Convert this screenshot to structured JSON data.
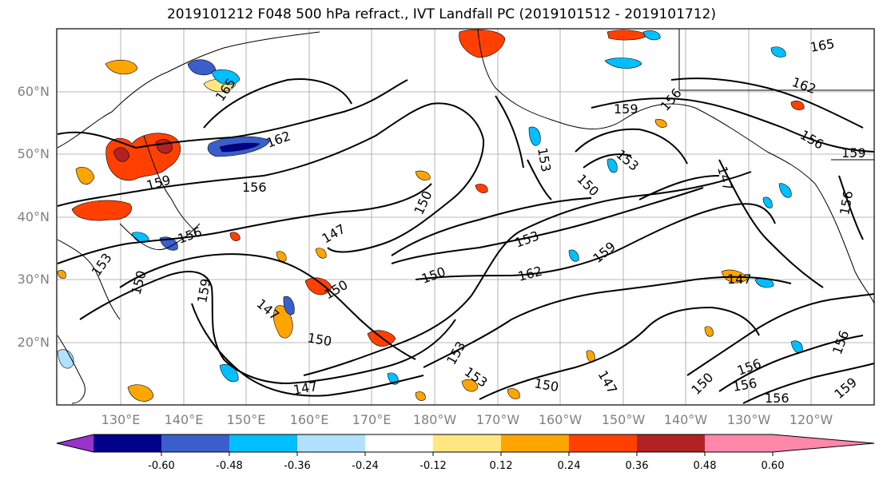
{
  "title": "2019101212 F048 500 hPa refract., IVT Landfall PC (2019101512 - 2019101712)",
  "lat_labels": [
    "60°N",
    "50°N",
    "40°N",
    "30°N",
    "20°N"
  ],
  "lon_labels": [
    "130°E",
    "140°E",
    "150°E",
    "160°E",
    "170°E",
    "180°W",
    "170°W",
    "160°W",
    "150°W",
    "140°W",
    "130°W",
    "120°W"
  ],
  "colorbar": {
    "colors": [
      "#9a32cd",
      "#00008b",
      "#3a5fcd",
      "#00bfff",
      "#b0e2ff",
      "#ffffff",
      "#ffe680",
      "#ffa500",
      "#ff4000",
      "#b22222",
      "#ff88aa"
    ],
    "tick_labels": [
      "-0.60",
      "-0.48",
      "-0.36",
      "-0.24",
      "-0.12",
      "0.12",
      "0.24",
      "0.36",
      "0.48",
      "0.60"
    ]
  },
  "contour_labels": [
    "165",
    "162",
    "159",
    "156",
    "153",
    "150",
    "147",
    "165",
    "162",
    "159",
    "156",
    "159",
    "153",
    "156",
    "153",
    "150",
    "147",
    "156",
    "150",
    "159",
    "156",
    "153",
    "162",
    "159",
    "147",
    "150",
    "150",
    "147",
    "153",
    "153",
    "150",
    "147",
    "150",
    "150",
    "156",
    "156",
    "159",
    "156",
    "147",
    "156"
  ]
}
